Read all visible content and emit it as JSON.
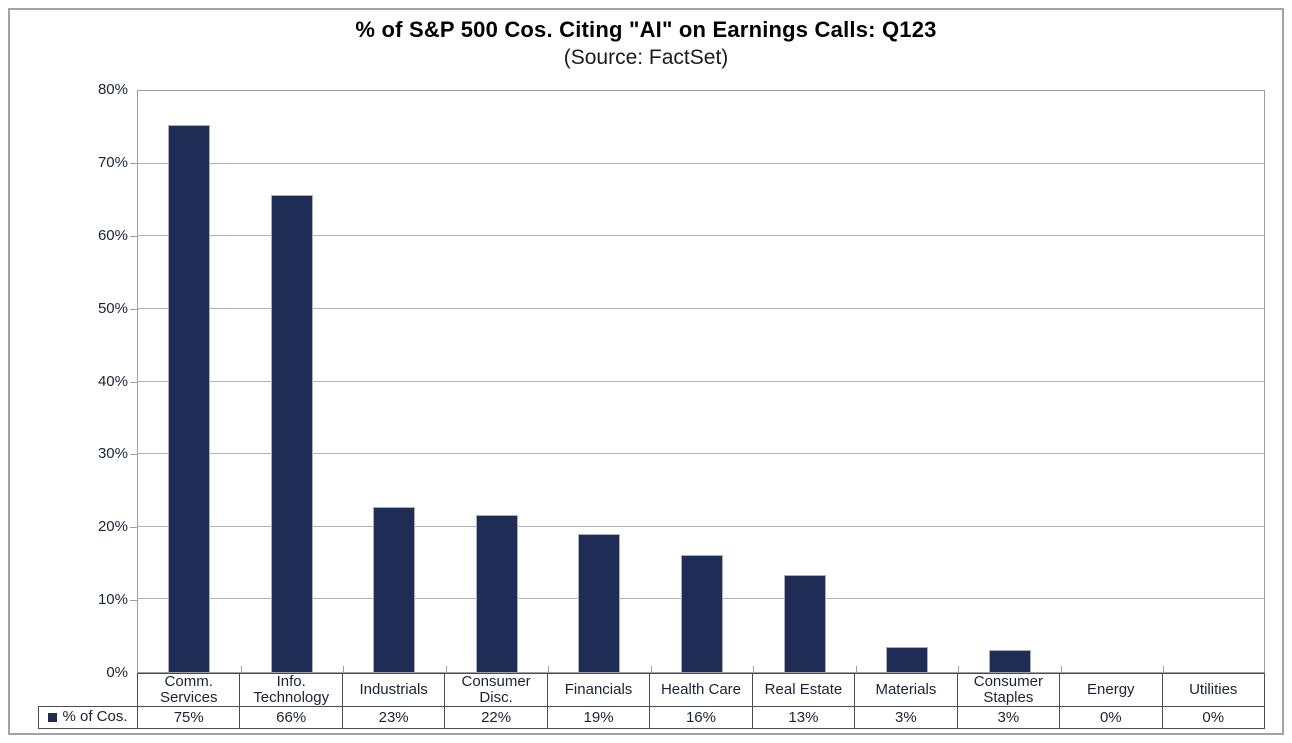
{
  "chart_data": {
    "type": "bar",
    "title": "% of S&P 500 Cos. Citing \"AI\" on Earnings Calls: Q123",
    "subtitle": "(Source: FactSet)",
    "categories": [
      "Comm. Services",
      "Info. Technology",
      "Industrials",
      "Consumer Disc.",
      "Financials",
      "Health Care",
      "Real Estate",
      "Materials",
      "Consumer Staples",
      "Energy",
      "Utilities"
    ],
    "category_display": [
      "Comm.\nServices",
      "Info.\nTechnology",
      "Industrials",
      "Consumer\nDisc.",
      "Financials",
      "Health Care",
      "Real Estate",
      "Materials",
      "Consumer\nStaples",
      "Energy",
      "Utilities"
    ],
    "series": [
      {
        "name": "% of Cos.",
        "values": [
          75,
          65.5,
          22.7,
          21.5,
          19,
          16,
          13.3,
          3.4,
          3,
          0,
          0
        ],
        "labels": [
          "75%",
          "66%",
          "23%",
          "22%",
          "19%",
          "16%",
          "13%",
          "3%",
          "3%",
          "0%",
          "0%"
        ]
      }
    ],
    "xlabel": "",
    "ylabel": "",
    "ylim": [
      0,
      80
    ],
    "yticks": [
      "0%",
      "10%",
      "20%",
      "30%",
      "40%",
      "50%",
      "60%",
      "70%",
      "80%"
    ],
    "grid": true,
    "legend_position": "data-table-left",
    "data_table": true,
    "bar_color": "#1F2C55",
    "gridline_color": "#b3b3b3",
    "table_border_color": "#4d4d4d"
  }
}
